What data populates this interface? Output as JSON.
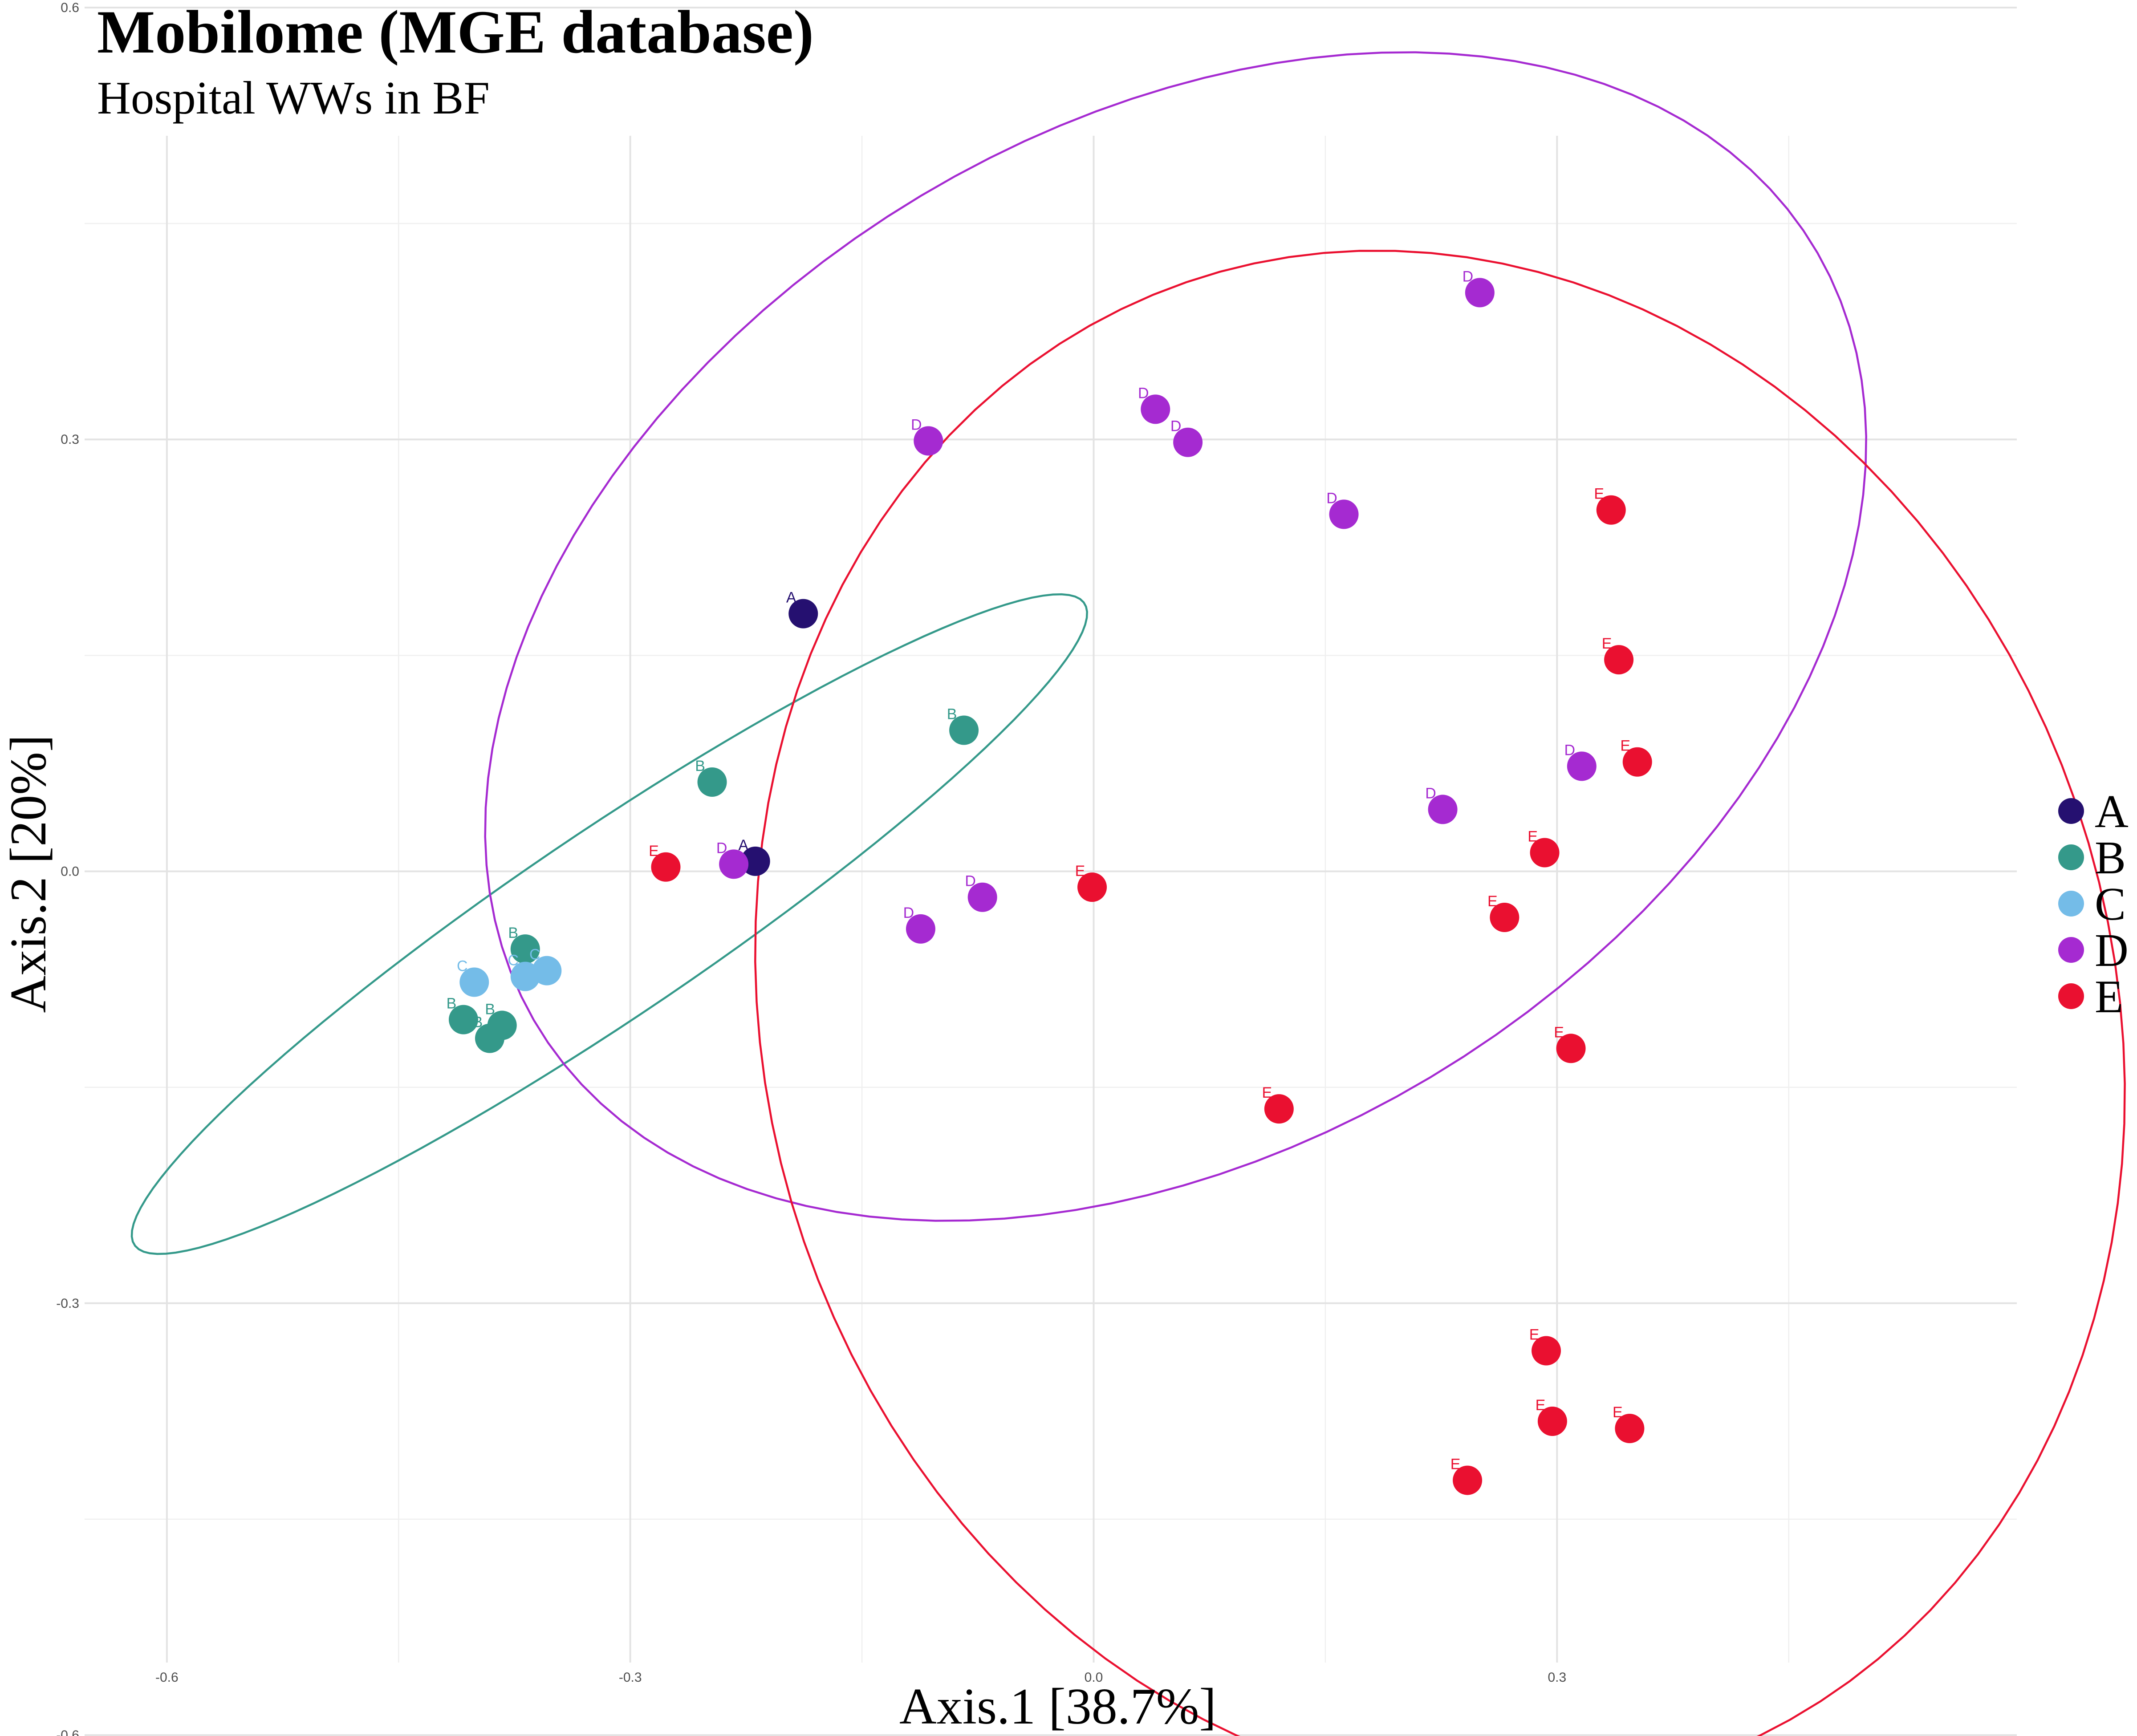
{
  "chart_data": {
    "type": "scatter",
    "title": "Mobilome (MGE database)",
    "subtitle": "Hospital WWs in BF",
    "xlabel": "Axis.1   [38.7%]",
    "ylabel": "Axis.2   [20%]",
    "xlim": [
      -0.65,
      0.62
    ],
    "ylim": [
      -0.655,
      0.612
    ],
    "xticks": [
      -0.6,
      -0.3,
      0.0,
      0.3
    ],
    "yticks": [
      0.6,
      0.3,
      0.0,
      -0.3,
      -0.6
    ],
    "xtick_labels": [
      "-0.6",
      "-0.3",
      "0.0",
      "0.3"
    ],
    "ytick_labels": [
      "0.6",
      "0.3",
      "0.0",
      "-0.3",
      "-0.6"
    ],
    "grid": true,
    "legend_position": "right",
    "series": [
      {
        "name": "A",
        "color": "#251070",
        "points": [
          [
            -0.188,
            0.179
          ],
          [
            -0.219,
            0.007
          ]
        ]
      },
      {
        "name": "B",
        "color": "#34998a",
        "points": [
          [
            -0.247,
            0.062
          ],
          [
            -0.084,
            0.098
          ],
          [
            -0.368,
            -0.054
          ],
          [
            -0.408,
            -0.103
          ],
          [
            -0.391,
            -0.116
          ],
          [
            -0.383,
            -0.107
          ]
        ]
      },
      {
        "name": "C",
        "color": "#74bce8",
        "points": [
          [
            -0.401,
            -0.077
          ],
          [
            -0.368,
            -0.073
          ],
          [
            -0.354,
            -0.069
          ]
        ]
      },
      {
        "name": "D",
        "color": "#a52ad1",
        "points": [
          [
            0.25,
            0.402
          ],
          [
            0.04,
            0.321
          ],
          [
            0.061,
            0.298
          ],
          [
            -0.107,
            0.299
          ],
          [
            0.162,
            0.248
          ],
          [
            0.316,
            0.073
          ],
          [
            0.226,
            0.043
          ],
          [
            -0.233,
            0.005
          ],
          [
            -0.072,
            -0.018
          ],
          [
            -0.112,
            -0.04
          ]
        ]
      },
      {
        "name": "E",
        "color": "#ea1030",
        "points": [
          [
            0.335,
            0.251
          ],
          [
            0.34,
            0.147
          ],
          [
            0.352,
            0.076
          ],
          [
            0.292,
            0.013
          ],
          [
            0.266,
            -0.032
          ],
          [
            -0.277,
            0.003
          ],
          [
            -0.001,
            -0.011
          ],
          [
            0.309,
            -0.123
          ],
          [
            0.12,
            -0.165
          ],
          [
            0.293,
            -0.333
          ],
          [
            0.297,
            -0.382
          ],
          [
            0.347,
            -0.387
          ],
          [
            0.242,
            -0.423
          ]
        ]
      }
    ]
  },
  "legend": {
    "items": [
      {
        "label": "A",
        "color": "#251070"
      },
      {
        "label": "B",
        "color": "#34998a"
      },
      {
        "label": "C",
        "color": "#74bce8"
      },
      {
        "label": "D",
        "color": "#a52ad1"
      },
      {
        "label": "E",
        "color": "#ea1030"
      }
    ]
  }
}
